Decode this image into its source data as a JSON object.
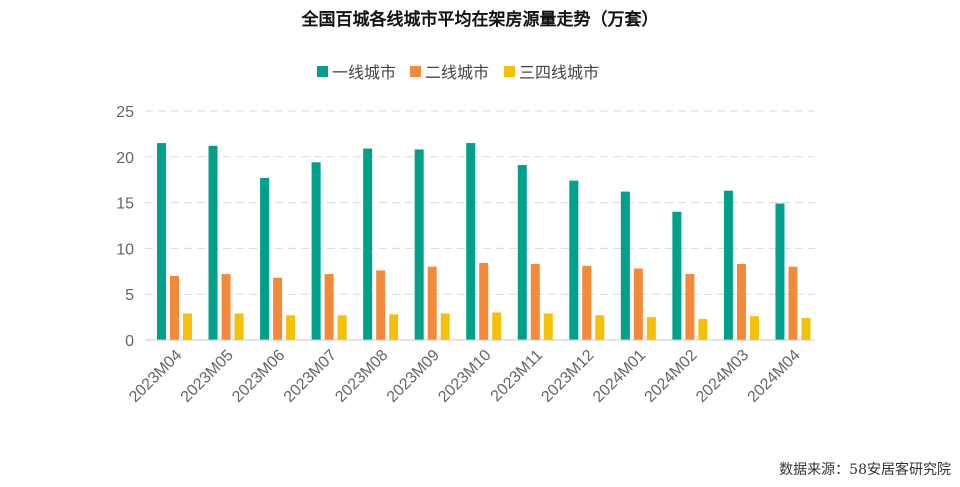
{
  "chart_data": {
    "type": "bar",
    "title": "全国百城各线城市平均在架房源量走势（万套）",
    "categories": [
      "2023M04",
      "2023M05",
      "2023M06",
      "2023M07",
      "2023M08",
      "2023M09",
      "2023M10",
      "2023M11",
      "2023M12",
      "2024M01",
      "2024M02",
      "2024M03",
      "2024M04"
    ],
    "series": [
      {
        "name": "一线城市",
        "color": "#00a08a",
        "values": [
          21.5,
          21.2,
          17.7,
          19.4,
          20.9,
          20.8,
          21.5,
          19.1,
          17.4,
          16.2,
          14.0,
          16.3,
          14.9
        ]
      },
      {
        "name": "二线城市",
        "color": "#f28a3a",
        "values": [
          7.0,
          7.2,
          6.8,
          7.2,
          7.6,
          8.0,
          8.4,
          8.3,
          8.1,
          7.8,
          7.2,
          8.3,
          8.0
        ]
      },
      {
        "name": "三四线城市",
        "color": "#f5c00a",
        "values": [
          2.9,
          2.9,
          2.7,
          2.7,
          2.8,
          2.9,
          3.0,
          2.9,
          2.7,
          2.5,
          2.3,
          2.6,
          2.4
        ]
      }
    ],
    "yticks": [
      0,
      5,
      10,
      15,
      20,
      25
    ],
    "ylim": [
      0,
      25
    ],
    "xlabel": "",
    "ylabel": "",
    "legend_position": "top-center",
    "grid": true
  },
  "source_text": "数据来源：58安居客研究院"
}
